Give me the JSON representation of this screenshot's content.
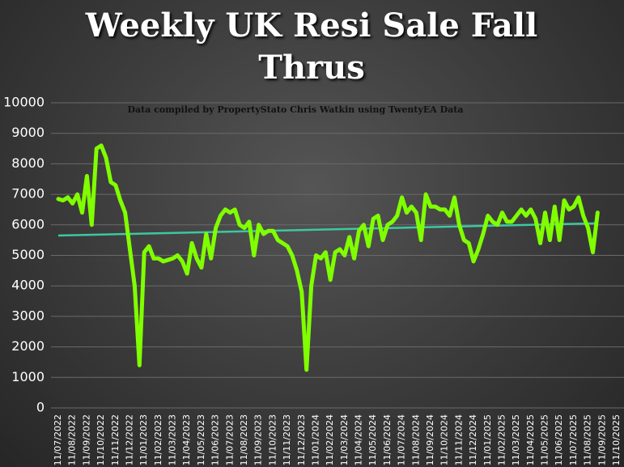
{
  "chart_data": {
    "type": "line",
    "title": "Weekly UK Resi Sale Fall Thrus",
    "subtitle": "Data compiled by PropertyStato Chris Watkin using TwentyEA Data",
    "categories": [
      "11/07/2022",
      null,
      null,
      "11/08/2022",
      null,
      null,
      "11/09/2022",
      null,
      null,
      "11/10/2022",
      null,
      null,
      "11/11/2022",
      null,
      null,
      "11/12/2022",
      null,
      null,
      "11/01/2023",
      null,
      null,
      "11/02/2023",
      null,
      null,
      "11/03/2023",
      null,
      null,
      "11/04/2023",
      null,
      null,
      "11/05/2023",
      null,
      null,
      "11/06/2023",
      null,
      null,
      "11/07/2023",
      null,
      null,
      "11/08/2023",
      null,
      null,
      "11/09/2023",
      null,
      null,
      "11/10/2023",
      null,
      null,
      "11/11/2023",
      null,
      null,
      "11/12/2023",
      null,
      null,
      "11/01/2024",
      null,
      null,
      "11/02/2024",
      null,
      null,
      "11/03/2024",
      null,
      null,
      "11/04/2024",
      null,
      null,
      "11/05/2024",
      null,
      null,
      "11/06/2024",
      null,
      null,
      "11/07/2024",
      null,
      null,
      "11/08/2024",
      null,
      null,
      "11/09/2024",
      null,
      null,
      "11/10/2024",
      null,
      null,
      "11/11/2024",
      null,
      null,
      "11/12/2024",
      null,
      null,
      "11/01/2025",
      null,
      null,
      "11/02/2025",
      null,
      null,
      "11/03/2025",
      null,
      null,
      "11/04/2025",
      null,
      null,
      "11/05/2025",
      null,
      null,
      "11/06/2025",
      null,
      null,
      "11/07/2025",
      null,
      null,
      "11/08/2025",
      null,
      null,
      "11/09/2025",
      null,
      null,
      "11/10/2025"
    ],
    "series": [
      {
        "color": "#80ff00",
        "values": [
          6850,
          6800,
          6900,
          6700,
          7000,
          6400,
          7600,
          6000,
          8500,
          8600,
          8200,
          7400,
          7300,
          6800,
          6400,
          5200,
          4000,
          1400,
          5100,
          5300,
          4900,
          4900,
          4800,
          4850,
          4900,
          5000,
          4800,
          4400,
          5400,
          4900,
          4600,
          5700,
          4900,
          5900,
          6300,
          6500,
          6400,
          6500,
          6000,
          5900,
          6100,
          5000,
          6000,
          5700,
          5800,
          5800,
          5500,
          5400,
          5300,
          5000,
          4500,
          3800,
          1250,
          4000,
          5000,
          4900,
          5100,
          4200,
          5100,
          5200,
          5000,
          5600,
          4900,
          5800,
          6000,
          5300,
          6200,
          6300,
          5500,
          6000,
          6100,
          6300,
          6900,
          6400,
          6600,
          6400,
          5500,
          7000,
          6600,
          6600,
          6500,
          6500,
          6300,
          6900,
          6000,
          5500,
          5400,
          4800,
          5200,
          5700,
          6300,
          6100,
          6000,
          6400,
          6100,
          6100,
          6300,
          6500,
          6300,
          6500,
          6200,
          5400,
          6400,
          5500,
          6600,
          5500,
          6800,
          6500,
          6600,
          6900,
          6300,
          5900,
          5100,
          6400,
          null,
          null,
          null,
          null
        ]
      }
    ],
    "trendline": {
      "color": "#3cc8a0",
      "start": 5650,
      "end": 6050
    },
    "ylim": [
      0,
      10000
    ],
    "yticks": [
      0,
      1000,
      2000,
      3000,
      4000,
      5000,
      6000,
      7000,
      8000,
      9000,
      10000
    ],
    "grid": true
  }
}
